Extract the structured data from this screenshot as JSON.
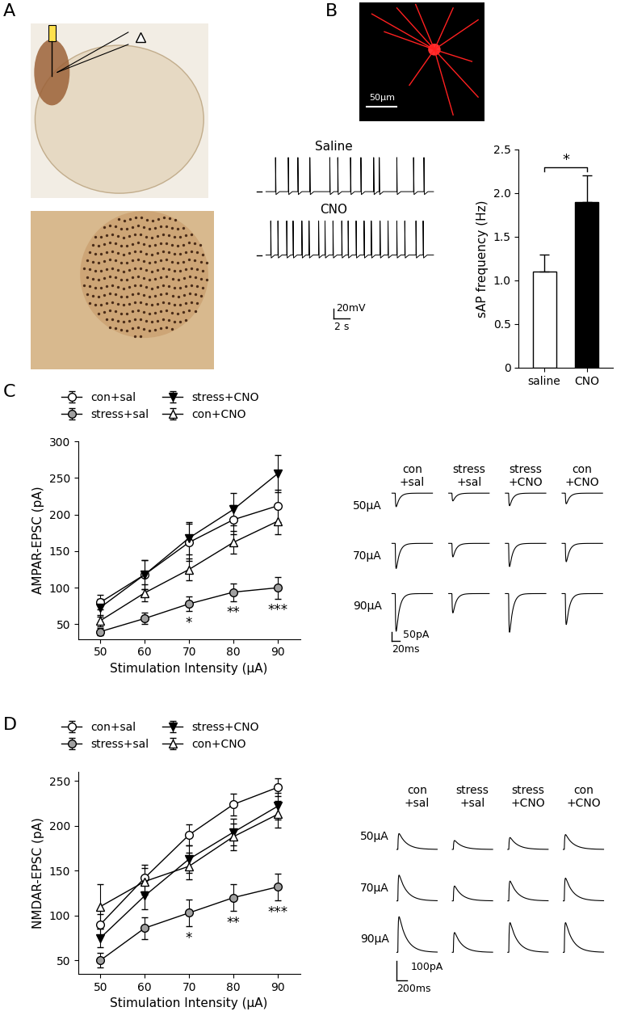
{
  "panel_labels": [
    "A",
    "B",
    "C",
    "D"
  ],
  "images": {
    "neuron_scale_bar": "50μm"
  },
  "traces": {
    "B": {
      "names": [
        "Saline",
        "CNO"
      ],
      "spike_times": [
        [
          1.2,
          2.8,
          4.0,
          5.5,
          8.0,
          9.0,
          10.6,
          11.9,
          13.5,
          14.2,
          16.4,
          18.5,
          19.8
        ],
        [
          0.6,
          1.5,
          2.6,
          3.4,
          4.5,
          5.4,
          6.6,
          7.4,
          8.4,
          9.5,
          10.3,
          11.3,
          12.3,
          13.2,
          14.3,
          15.3,
          16.4,
          17.4,
          18.8,
          19.7
        ]
      ],
      "spike_amplitude": 70,
      "scale_y": {
        "value": 20,
        "label": "20mV"
      },
      "scale_x": {
        "value": 2,
        "label": "2 s"
      }
    },
    "C": {
      "columns": [
        "con\n+sal",
        "stress\n+sal",
        "stress\n+CNO",
        "con\n+CNO"
      ],
      "rows": [
        "50μA",
        "70μA",
        "90μA"
      ],
      "amplitudes": [
        [
          70,
          130,
          195
        ],
        [
          40,
          70,
          100
        ],
        [
          65,
          120,
          200
        ],
        [
          55,
          95,
          160
        ]
      ],
      "direction": "down",
      "scale_y": {
        "value": 50,
        "label": "50pA"
      },
      "scale_x": {
        "value": 20,
        "label": "20ms"
      }
    },
    "D": {
      "columns": [
        "con\n+sal",
        "stress\n+sal",
        "stress\n+CNO",
        "con\n+CNO"
      ],
      "rows": [
        "50μA",
        "70μA",
        "90μA"
      ],
      "amplitudes": [
        [
          80,
          130,
          180
        ],
        [
          45,
          75,
          100
        ],
        [
          60,
          100,
          150
        ],
        [
          75,
          115,
          150
        ]
      ],
      "direction": "up",
      "scale_y": {
        "value": 100,
        "label": "100pA"
      },
      "scale_x": {
        "value": 200,
        "label": "200ms"
      }
    }
  },
  "chart_data": [
    {
      "type": "bar",
      "categories": [
        "saline",
        "CNO"
      ],
      "values": [
        1.1,
        1.9
      ],
      "errors": [
        0.2,
        0.3
      ],
      "colors": [
        "#ffffff",
        "#000000"
      ],
      "ylabel": "sAP frequency (Hz)",
      "ylim": [
        0,
        2.5
      ],
      "yticks": [
        0,
        0.5,
        1.0,
        1.5,
        2.0,
        2.5
      ],
      "significance": "*"
    },
    {
      "type": "line",
      "xlabel": "Stimulation Intensity (μA)",
      "ylabel": "AMPAR-EPSC (pA)",
      "x": [
        50,
        60,
        70,
        80,
        90
      ],
      "xlim": [
        45,
        95
      ],
      "xticks": [
        50,
        60,
        70,
        80,
        90
      ],
      "ylim": [
        30,
        300
      ],
      "yticks": [
        50,
        100,
        150,
        200,
        250,
        300
      ],
      "legend": "upper left",
      "series": [
        {
          "name": "con+sal",
          "color": "#ffffff",
          "marker": "circle",
          "values": [
            80,
            118,
            162,
            193,
            212
          ],
          "errors": [
            10,
            20,
            25,
            20,
            22
          ]
        },
        {
          "name": "stress+sal",
          "color": "#a0a0a0",
          "marker": "circle",
          "values": [
            40,
            58,
            78,
            94,
            100
          ],
          "errors": [
            5,
            8,
            10,
            12,
            15
          ],
          "significance": {
            "x": [
              70,
              80,
              90
            ],
            "labels": [
              "*",
              "**",
              "***"
            ]
          }
        },
        {
          "name": "stress+CNO",
          "color": "#000000",
          "marker": "triangle_down",
          "values": [
            73,
            118,
            168,
            207,
            256
          ],
          "errors": [
            12,
            20,
            22,
            22,
            25
          ]
        },
        {
          "name": "con+CNO",
          "color": "#ffffff",
          "marker": "triangle_up",
          "values": [
            55,
            93,
            125,
            162,
            191
          ],
          "errors": [
            8,
            12,
            15,
            15,
            18
          ]
        }
      ]
    },
    {
      "type": "line",
      "xlabel": "Stimulation Intensity (μA)",
      "ylabel": "NMDAR-EPSC (pA)",
      "x": [
        50,
        60,
        70,
        80,
        90
      ],
      "xlim": [
        45,
        95
      ],
      "xticks": [
        50,
        60,
        70,
        80,
        90
      ],
      "ylim": [
        35,
        260
      ],
      "yticks": [
        50,
        100,
        150,
        200,
        250
      ],
      "legend": "upper left",
      "series": [
        {
          "name": "con+sal",
          "color": "#ffffff",
          "marker": "circle",
          "values": [
            90,
            142,
            190,
            224,
            243
          ],
          "errors": [
            12,
            15,
            12,
            12,
            10
          ]
        },
        {
          "name": "stress+sal",
          "color": "#a0a0a0",
          "marker": "circle",
          "values": [
            50,
            86,
            103,
            120,
            132
          ],
          "errors": [
            8,
            12,
            15,
            15,
            15
          ],
          "significance": {
            "x": [
              70,
              80,
              90
            ],
            "labels": [
              "*",
              "**",
              "***"
            ]
          }
        },
        {
          "name": "stress+CNO",
          "color": "#000000",
          "marker": "triangle_down",
          "values": [
            75,
            122,
            163,
            193,
            222
          ],
          "errors": [
            10,
            15,
            15,
            15,
            15
          ]
        },
        {
          "name": "con+CNO",
          "color": "#ffffff",
          "marker": "triangle_up",
          "values": [
            110,
            138,
            155,
            188,
            213
          ],
          "errors": [
            25,
            15,
            15,
            15,
            15
          ]
        }
      ]
    }
  ]
}
